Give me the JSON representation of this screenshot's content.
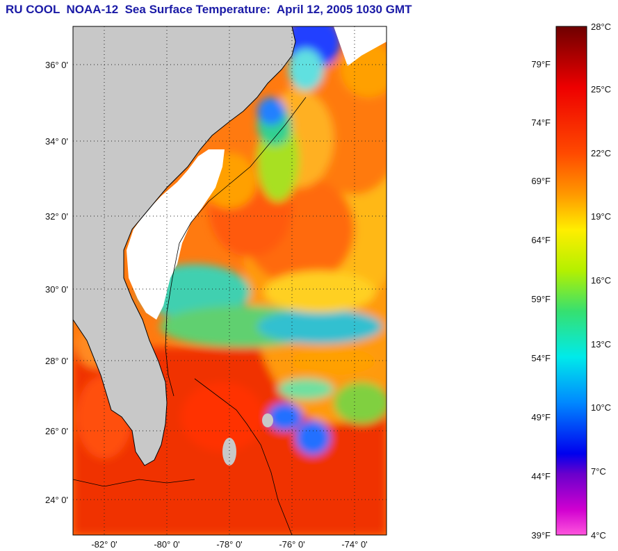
{
  "title": "RU COOL  NOAA-12  Sea Surface Temperature:  April 12, 2005 1030 GMT",
  "map": {
    "lat_labels": [
      "36° 0'",
      "34° 0'",
      "32° 0'",
      "30° 0'",
      "28° 0'",
      "26° 0'",
      "24° 0'"
    ],
    "lon_labels": [
      "-82° 0'",
      "-80° 0'",
      "-78° 0'",
      "-76° 0'",
      "-74° 0'"
    ],
    "colors": {
      "land": "#c8c8c8",
      "cloud": "#ffffff",
      "frame": "#000000"
    }
  },
  "colorbar": {
    "celsius_labels": [
      "28°C",
      "25°C",
      "22°C",
      "19°C",
      "16°C",
      "13°C",
      "10°C",
      "7°C",
      "4°C"
    ],
    "fahrenheit_labels": [
      "79°F",
      "74°F",
      "69°F",
      "64°F",
      "59°F",
      "54°F",
      "49°F",
      "44°F",
      "39°F"
    ]
  }
}
